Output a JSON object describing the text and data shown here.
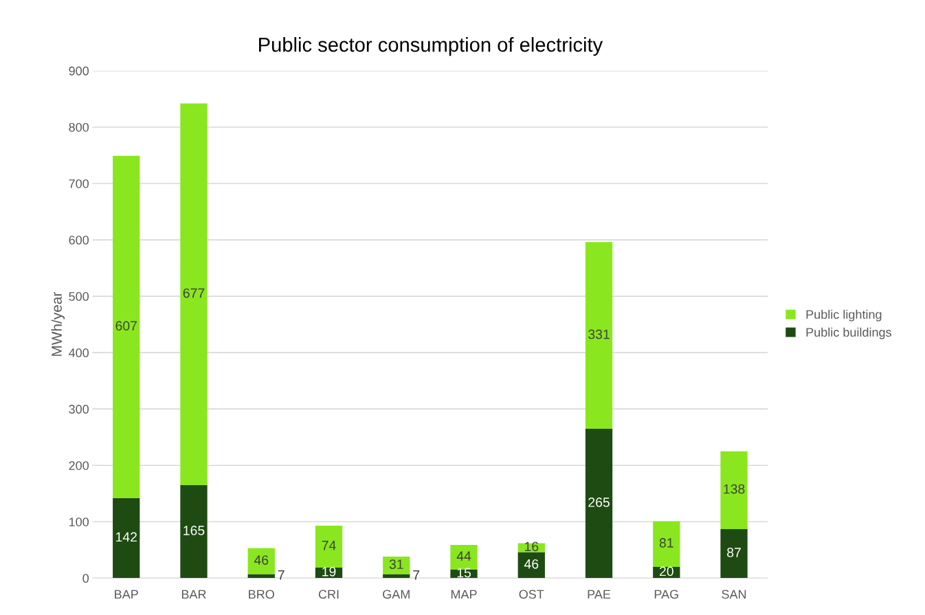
{
  "chart_data": {
    "type": "bar",
    "title": "Public sector consumption of electricity",
    "ylabel": "MWh/year",
    "categories": [
      "BAP",
      "BAR",
      "BRO",
      "CRI",
      "GAM",
      "MAP",
      "OST",
      "PAE",
      "PAG",
      "SAN"
    ],
    "stacked": true,
    "series": [
      {
        "name": "Public buildings",
        "color": "#1e4b12",
        "values": [
          142,
          165,
          7,
          19,
          7,
          15,
          46,
          265,
          20,
          87
        ]
      },
      {
        "name": "Public lighting",
        "color": "#8ae71f",
        "values": [
          607,
          677,
          46,
          74,
          31,
          44,
          16,
          331,
          81,
          138
        ]
      }
    ],
    "ylim": [
      0,
      900
    ],
    "yticks": [
      0,
      100,
      200,
      300,
      400,
      500,
      600,
      700,
      800,
      900
    ],
    "grid": "y",
    "legend": "right",
    "data_labels": true
  }
}
